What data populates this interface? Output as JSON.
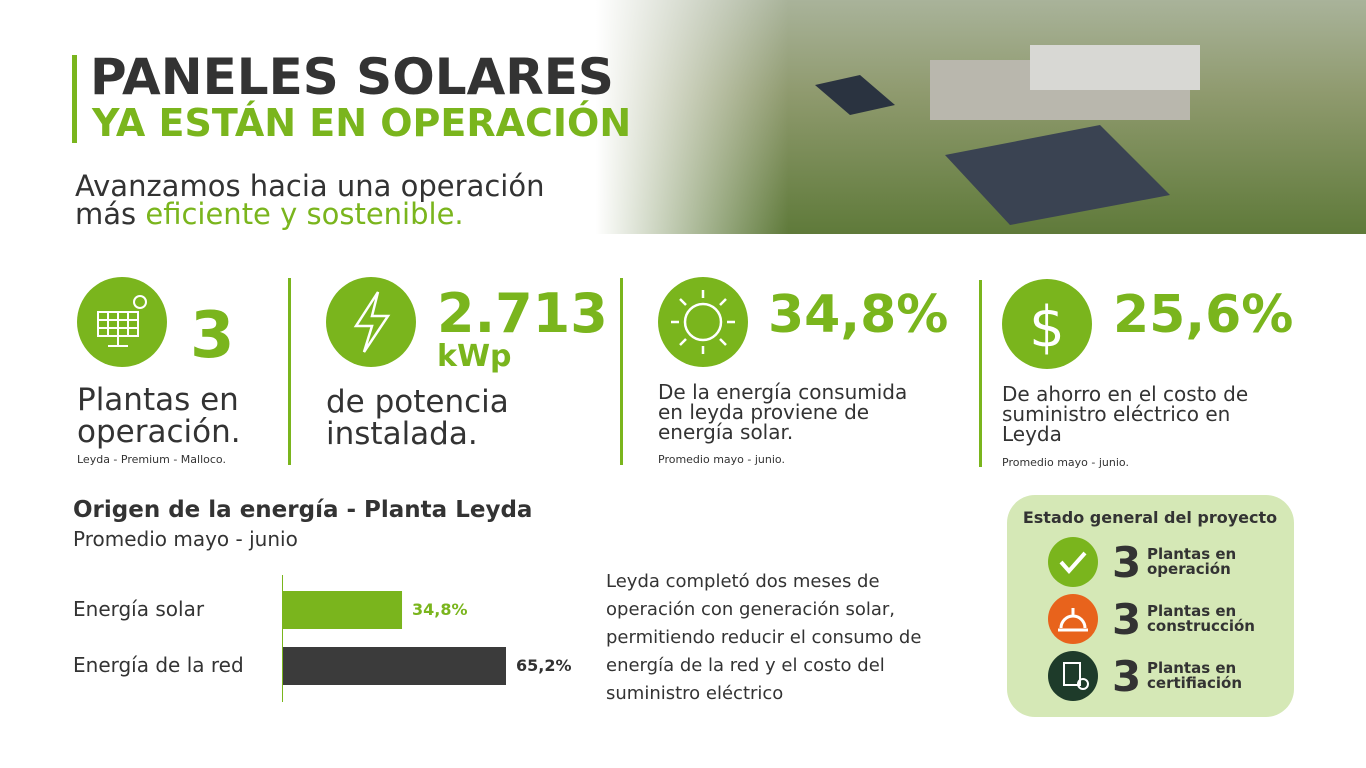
{
  "header": {
    "title": "PANELES SOLARES",
    "subtitle": "YA ESTÁN EN OPERACIÓN",
    "tagline": {
      "line1": "Avanzamos hacia una operación",
      "line2_start": "más",
      "line2_highlight": "eficiente y sostenible."
    }
  },
  "stats": [
    {
      "value": "3",
      "lines": [
        "Plantas en",
        "operación."
      ],
      "note": "Leyda - Premium - Malloco."
    },
    {
      "value": "2.713",
      "unit": "kWp",
      "lines": [
        "de potencia",
        "instalada."
      ]
    },
    {
      "value": "34,8%",
      "lines": [
        "De la energía consumida",
        "en leyda proviene de",
        "energía solar."
      ],
      "note": "Promedio mayo - junio."
    },
    {
      "value": "25,6%",
      "lines": [
        "De ahorro en el costo de",
        "suministro eléctrico en",
        "Leyda"
      ],
      "note": "Promedio mayo - junio."
    }
  ],
  "chart_data": {
    "type": "bar",
    "orientation": "horizontal",
    "title": "Origen de la energía - Planta Leyda",
    "subtitle": "Promedio mayo - junio",
    "categories": [
      "Energía solar",
      "Energía de la red"
    ],
    "values": [
      34.8,
      65.2
    ],
    "value_labels": [
      "34,8%",
      "65,2%"
    ],
    "colors": [
      "#7ab51d",
      "#3b3b3b"
    ]
  },
  "note": {
    "lines": [
      "Leyda completó dos meses de",
      "operación con generación solar,",
      "permitiendo reducir el consumo de",
      "energía de la red y el costo del",
      "suministro eléctrico"
    ]
  },
  "status": {
    "title": "Estado general del proyecto",
    "items": [
      {
        "count": "3",
        "lines": [
          "Plantas en",
          "operación"
        ]
      },
      {
        "count": "3",
        "lines": [
          "Plantas en",
          "construcción"
        ]
      },
      {
        "count": "3",
        "lines": [
          "Plantas en",
          "certifiación"
        ]
      }
    ]
  }
}
